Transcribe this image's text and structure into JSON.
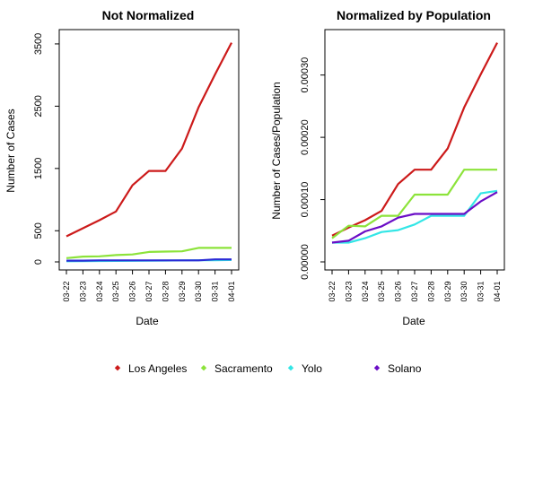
{
  "chart_data": [
    {
      "type": "line",
      "title": "Not Normalized",
      "xlabel": "Date",
      "ylabel": "Number of Cases",
      "ylim": [
        0,
        3600
      ],
      "yticks": [
        0,
        500,
        1500,
        2500,
        3500
      ],
      "ytick_labels": [
        "0",
        "500",
        "1500",
        "2500",
        "3500"
      ],
      "categories": [
        "03-22",
        "03-23",
        "03-24",
        "03-25",
        "03-26",
        "03-27",
        "03-28",
        "03-29",
        "03-30",
        "03-31",
        "04-01"
      ],
      "series": [
        {
          "name": "Los Angeles",
          "color": "#cc1a1a",
          "values": [
            410,
            540,
            670,
            810,
            1230,
            1460,
            1460,
            1820,
            2480,
            3010,
            3520
          ]
        },
        {
          "name": "Sacramento",
          "color": "#8ce33a",
          "values": [
            60,
            85,
            90,
            110,
            120,
            160,
            165,
            170,
            225,
            225,
            225
          ]
        },
        {
          "name": "Yolo",
          "color": "#33e6e6",
          "values": [
            10,
            12,
            14,
            16,
            18,
            20,
            22,
            24,
            26,
            28,
            30
          ]
        },
        {
          "name": "Solano",
          "color": "#2b2bd6",
          "values": [
            20,
            20,
            25,
            25,
            25,
            25,
            25,
            25,
            25,
            40,
            40
          ]
        }
      ]
    },
    {
      "type": "line",
      "title": "Normalized by Population",
      "xlabel": "Date",
      "ylabel": "Number of Cases/Population",
      "ylim": [
        0,
        0.00036
      ],
      "yticks": [
        0,
        0.0001,
        0.0002,
        0.0003
      ],
      "ytick_labels": [
        "0.00000",
        "0.00010",
        "0.00020",
        "0.00030"
      ],
      "categories": [
        "03-22",
        "03-23",
        "03-24",
        "03-25",
        "03-26",
        "03-27",
        "03-28",
        "03-29",
        "03-30",
        "03-31",
        "04-01"
      ],
      "series": [
        {
          "name": "Los Angeles",
          "color": "#cc1a1a",
          "values": [
            4.2e-05,
            5.5e-05,
            6.7e-05,
            8.2e-05,
            0.000125,
            0.000148,
            0.000148,
            0.000182,
            0.000248,
            0.000301,
            0.000352
          ]
        },
        {
          "name": "Sacramento",
          "color": "#8ce33a",
          "values": [
            3.8e-05,
            5.8e-05,
            5.7e-05,
            7.4e-05,
            7.4e-05,
            0.000108,
            0.000108,
            0.000108,
            0.000148,
            0.000148,
            0.000148
          ]
        },
        {
          "name": "Yolo",
          "color": "#33e6e6",
          "values": [
            3.1e-05,
            3.1e-05,
            3.8e-05,
            4.8e-05,
            5.1e-05,
            6e-05,
            7.4e-05,
            7.4e-05,
            7.4e-05,
            0.00011,
            0.000114
          ]
        },
        {
          "name": "Solano",
          "color": "#6a0dc6",
          "values": [
            3.1e-05,
            3.4e-05,
            4.9e-05,
            5.7e-05,
            7.1e-05,
            7.7e-05,
            7.7e-05,
            7.7e-05,
            7.7e-05,
            9.7e-05,
            0.000112
          ]
        }
      ]
    }
  ],
  "legend": [
    {
      "label": "Los Angeles",
      "color": "#cc1a1a"
    },
    {
      "label": "Sacramento",
      "color": "#8ce33a"
    },
    {
      "label": "Yolo",
      "color": "#33e6e6"
    },
    {
      "label": "Solano",
      "color": "#6a0dc6"
    }
  ]
}
